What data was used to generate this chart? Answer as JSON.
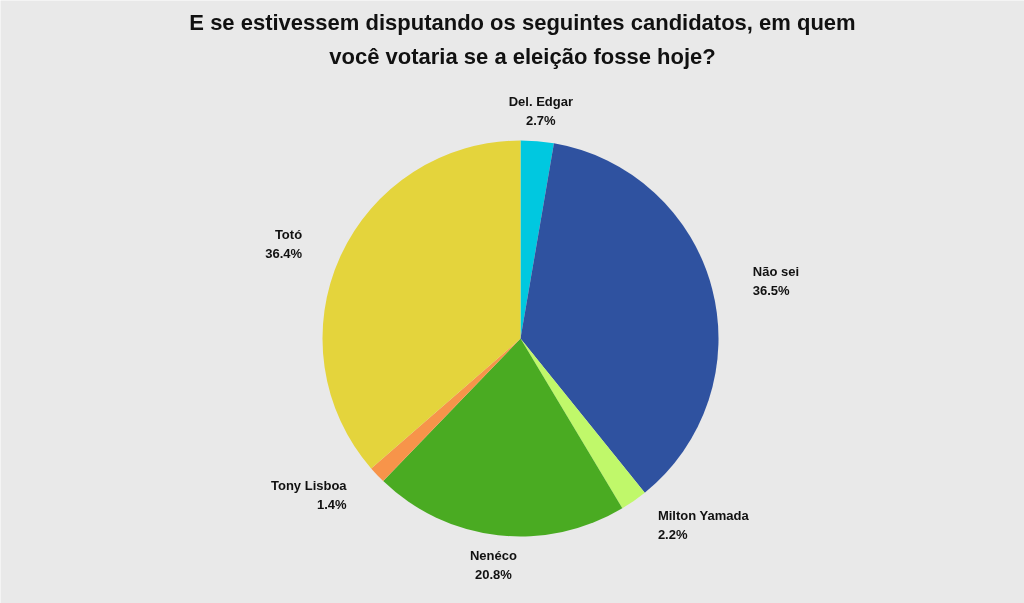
{
  "chart_data": {
    "type": "pie",
    "title": "E se estivessem disputando os seguintes candidatos, em quem você votaria se a eleição fosse hoje?",
    "categories": [
      "Del. Edgar",
      "Não sei",
      "Milton Yamada",
      "Nenéco",
      "Tony Lisboa",
      "Totó"
    ],
    "values": [
      2.7,
      36.5,
      2.2,
      20.8,
      1.4,
      36.4
    ],
    "value_labels": [
      "2.7%",
      "36.5%",
      "2.2%",
      "20.8%",
      "1.4%",
      "36.4%"
    ],
    "colors": [
      "#00c8e0",
      "#2f52a0",
      "#c0f86a",
      "#4aab22",
      "#f7944a",
      "#e4d43c"
    ],
    "legend": false
  }
}
